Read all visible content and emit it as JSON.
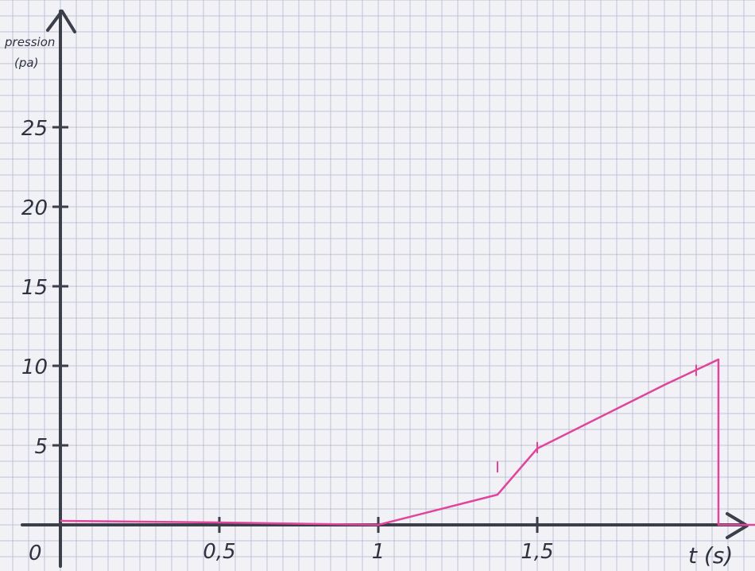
{
  "chart_data": {
    "type": "line",
    "ylabel_line1": "pression",
    "ylabel_line2": "(pa)",
    "xlabel": "t (s)",
    "origin_label": "0",
    "xlim": [
      0,
      2.2
    ],
    "ylim": [
      0,
      30
    ],
    "grid": true,
    "x_ticks": [
      {
        "value": 0.5,
        "label": "0,5"
      },
      {
        "value": 1,
        "label": "1"
      },
      {
        "value": 1.5,
        "label": "1,5"
      }
    ],
    "y_ticks": [
      {
        "value": 5,
        "label": "5"
      },
      {
        "value": 10,
        "label": "10"
      },
      {
        "value": 15,
        "label": "15"
      },
      {
        "value": 20,
        "label": "20"
      },
      {
        "value": 25,
        "label": "25"
      }
    ],
    "series": [
      {
        "color": "#e0449b",
        "x": [
          0,
          0.5,
          1,
          1.375,
          1.5,
          1.9,
          2.07,
          2.07,
          2.2
        ],
        "y": [
          0.25,
          0.15,
          0,
          1.9,
          4.8,
          8.8,
          10.4,
          0,
          0
        ],
        "marker_x": [
          1.375,
          1.5,
          2.0
        ]
      }
    ]
  },
  "colors": {
    "paper": "#f2f1f6",
    "grid": "#bcc3d8",
    "axis": "#3a3f4a",
    "curve": "#e0449b"
  }
}
